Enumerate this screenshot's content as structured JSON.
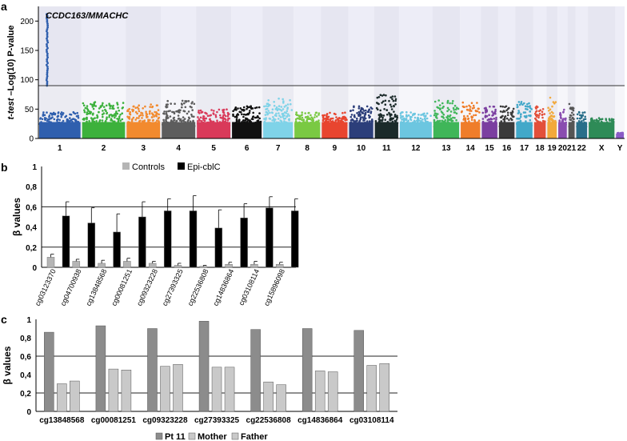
{
  "chart_data": [
    {
      "panel": "a",
      "type": "scatter",
      "subtype": "manhattan",
      "ylabel_prefix": "t-test",
      "ylabel": "–Log(10) P-value",
      "annotation": "CCDC163/MMACHC",
      "yticks": [
        0,
        50,
        100,
        150,
        200
      ],
      "ylim": [
        0,
        225
      ],
      "threshold": 90,
      "chromosomes": [
        {
          "label": "1",
          "color": "#2f5fae",
          "peak": 45
        },
        {
          "label": "2",
          "color": "#3cb13c",
          "peak": 62
        },
        {
          "label": "3",
          "color": "#f28a2e",
          "peak": 60
        },
        {
          "label": "4",
          "color": "#5d5d5d",
          "peak": 65
        },
        {
          "label": "5",
          "color": "#d93a5a",
          "peak": 50
        },
        {
          "label": "6",
          "color": "#111111",
          "peak": 55
        },
        {
          "label": "7",
          "color": "#7fd3e8",
          "peak": 68
        },
        {
          "label": "8",
          "color": "#7ac943",
          "peak": 45
        },
        {
          "label": "9",
          "color": "#e8452f",
          "peak": 45
        },
        {
          "label": "10",
          "color": "#2c3e7a",
          "peak": 55
        },
        {
          "label": "11",
          "color": "#1b2a2a",
          "peak": 75
        },
        {
          "label": "12",
          "color": "#6cc6e0",
          "peak": 45
        },
        {
          "label": "13",
          "color": "#3fb659",
          "peak": 65
        },
        {
          "label": "14",
          "color": "#ef7d2a",
          "peak": 62
        },
        {
          "label": "15",
          "color": "#7b3fa0",
          "peak": 55
        },
        {
          "label": "16",
          "color": "#3a3a3a",
          "peak": 55
        },
        {
          "label": "17",
          "color": "#42a8c9",
          "peak": 65
        },
        {
          "label": "18",
          "color": "#e3503a",
          "peak": 55
        },
        {
          "label": "19",
          "color": "#f2a93b",
          "peak": 70
        },
        {
          "label": "20",
          "color": "#8a4db0",
          "peak": 50
        },
        {
          "label": "21",
          "color": "#555555",
          "peak": 60
        },
        {
          "label": "22",
          "color": "#2a6f8a",
          "peak": 45
        },
        {
          "label": "X",
          "color": "#2e8b57",
          "peak": 35
        },
        {
          "label": "Y",
          "color": "#8a5cc7",
          "peak": 8
        }
      ],
      "highlight": {
        "chromosome": "1",
        "min": 90,
        "max": 212
      }
    },
    {
      "panel": "b",
      "type": "bar",
      "ylabel": "β values",
      "yticks": [
        "0",
        "0,2",
        "0,4",
        "0,6",
        "0,8",
        "1"
      ],
      "ylim": [
        0,
        1
      ],
      "reference_lines": [
        0.2,
        0.6
      ],
      "categories": [
        "cg03123370",
        "cg04700938",
        "cg13848568",
        "cg00081251",
        "cg09323228",
        "cg27393325",
        "cg22536808",
        "cg14836864",
        "cg03108114",
        "cg15896098"
      ],
      "series": [
        {
          "name": "Controls",
          "color": "#b5b5b5",
          "values": [
            0.1,
            0.06,
            0.04,
            0.06,
            0.04,
            0.02,
            0.01,
            0.03,
            0.03,
            0.03
          ],
          "errors": [
            0.03,
            0.02,
            0.03,
            0.03,
            0.02,
            0.02,
            0.01,
            0.02,
            0.03,
            0.02
          ]
        },
        {
          "name": "Epi-cblC",
          "color": "#000000",
          "values": [
            0.51,
            0.44,
            0.35,
            0.5,
            0.56,
            0.56,
            0.39,
            0.49,
            0.59,
            0.56
          ],
          "errors": [
            0.14,
            0.15,
            0.18,
            0.15,
            0.12,
            0.15,
            0.18,
            0.14,
            0.11,
            0.12
          ]
        }
      ]
    },
    {
      "panel": "c",
      "type": "bar",
      "ylabel": "β values",
      "yticks": [
        "0",
        "0,2",
        "0,4",
        "0,6",
        "0,8",
        "1"
      ],
      "ylim": [
        0,
        1
      ],
      "reference_lines": [
        0.2,
        0.6
      ],
      "categories": [
        "cg13848568",
        "cg00081251",
        "cg09323228",
        "cg27393325",
        "cg22536808",
        "cg14836864",
        "cg03108114"
      ],
      "series": [
        {
          "name": "Pt 11",
          "color": "#8c8c8c",
          "values": [
            0.86,
            0.93,
            0.9,
            0.98,
            0.89,
            0.9,
            0.88
          ]
        },
        {
          "name": "Mother",
          "color": "#c9c9c9",
          "values": [
            0.3,
            0.46,
            0.49,
            0.48,
            0.32,
            0.44,
            0.5
          ]
        },
        {
          "name": "Father",
          "color": "#c9c9c9",
          "values": [
            0.33,
            0.45,
            0.51,
            0.48,
            0.29,
            0.43,
            0.52
          ]
        }
      ]
    }
  ]
}
